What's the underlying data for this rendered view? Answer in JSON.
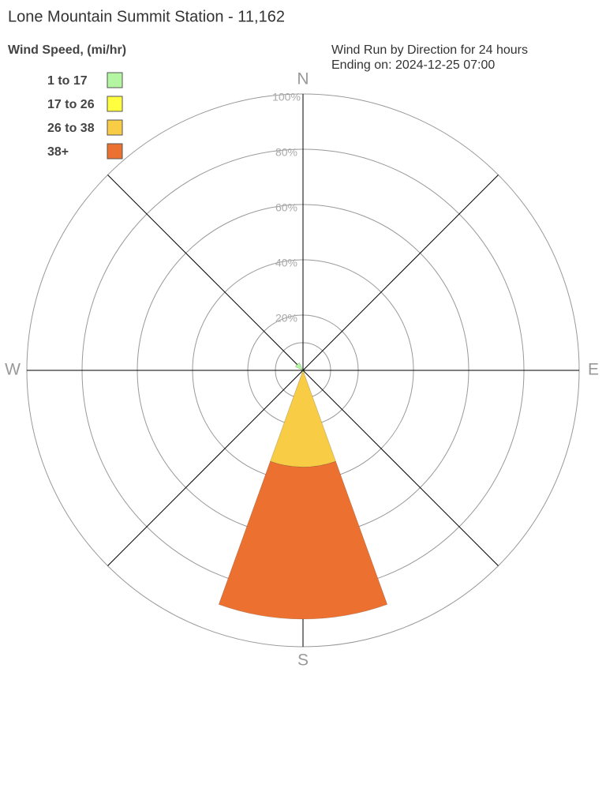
{
  "chart_data": {
    "type": "wind_rose",
    "title": "Lone Mountain Summit Station - 11,162",
    "legend_title": "Wind Speed, (mi/hr)",
    "subtitle": [
      "Wind Run by Direction for 24 hours",
      "Ending on: 2024-12-25 07:00"
    ],
    "directions": [
      "N",
      null,
      "E",
      null,
      "S",
      null,
      "W",
      null
    ],
    "rlim": [
      0,
      100
    ],
    "rticks": [
      {
        "value": 20,
        "label": "20%"
      },
      {
        "value": 40,
        "label": "40%"
      },
      {
        "value": 60,
        "label": "60%"
      },
      {
        "value": 80,
        "label": "80%"
      },
      {
        "value": 100,
        "label": "100%"
      }
    ],
    "series": [
      {
        "name": "1 to 17",
        "color": "#b3f5a0",
        "values": [
          0,
          0,
          0,
          0,
          0,
          0,
          0,
          3
        ]
      },
      {
        "name": "17 to 26",
        "color": "#ffff40",
        "values": [
          0,
          0,
          0,
          0,
          1,
          0,
          0,
          0
        ]
      },
      {
        "name": "26 to 38",
        "color": "#f8cd45",
        "values": [
          0,
          0,
          0,
          0,
          34,
          0,
          0,
          0
        ]
      },
      {
        "name": "38+",
        "color": "#ec7131",
        "values": [
          0,
          0,
          0,
          0,
          55,
          0,
          0,
          0
        ]
      }
    ]
  }
}
